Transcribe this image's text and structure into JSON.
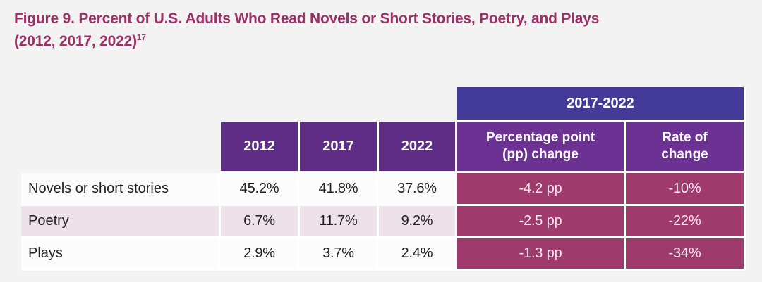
{
  "figure": {
    "title": "Figure 9. Percent of U.S. Adults Who Read Novels or Short Stories, Poetry, and Plays",
    "title_parenthetical": "(2012, 2017, 2022)",
    "title_footnote_ref": "17"
  },
  "table": {
    "span_header": "2017-2022",
    "year_headers": [
      "2012",
      "2017",
      "2022"
    ],
    "change_headers": [
      "Percentage point (pp) change",
      "Rate of change"
    ],
    "rows": [
      {
        "label": "Novels or short stories",
        "y2012": "45.2%",
        "y2017": "41.8%",
        "y2022": "37.6%",
        "pp_change": "-4.2 pp",
        "rate_change": "-10%"
      },
      {
        "label": "Poetry",
        "y2012": "6.7%",
        "y2017": "11.7%",
        "y2022": "9.2%",
        "pp_change": "-2.5 pp",
        "rate_change": "-22%"
      },
      {
        "label": "Plays",
        "y2012": "2.9%",
        "y2017": "3.7%",
        "y2022": "2.4%",
        "pp_change": "-1.3 pp",
        "rate_change": "-34%"
      }
    ]
  },
  "colors": {
    "page_background": "#f4f3f4",
    "title_text": "#9c3166",
    "span_header_background": "#443b98",
    "year_header_background": "#5f2d85",
    "change_header_background": "#6c3293",
    "magenta_cell_background": "#9e3a6c",
    "pink_row_background": "#eee2ea",
    "white_row_background": "#fdfcfd",
    "body_text": "#231f20"
  },
  "chart_data": {
    "type": "table",
    "title": "Figure 9. Percent of U.S. Adults Who Read Novels or Short Stories, Poetry, and Plays (2012, 2017, 2022)",
    "footnote_ref": "17",
    "categories": [
      "Novels or short stories",
      "Poetry",
      "Plays"
    ],
    "columns": [
      "2012",
      "2017",
      "2022",
      "Percentage point (pp) change",
      "Rate of change"
    ],
    "series": [
      {
        "name": "2012",
        "values": [
          45.2,
          6.7,
          2.9
        ],
        "unit": "%"
      },
      {
        "name": "2017",
        "values": [
          41.8,
          11.7,
          3.7
        ],
        "unit": "%"
      },
      {
        "name": "2022",
        "values": [
          37.6,
          9.2,
          2.4
        ],
        "unit": "%"
      },
      {
        "name": "Percentage point (pp) change 2017-2022",
        "values": [
          -4.2,
          -2.5,
          -1.3
        ],
        "unit": "pp"
      },
      {
        "name": "Rate of change 2017-2022",
        "values": [
          -10,
          -22,
          -34
        ],
        "unit": "%"
      }
    ]
  }
}
